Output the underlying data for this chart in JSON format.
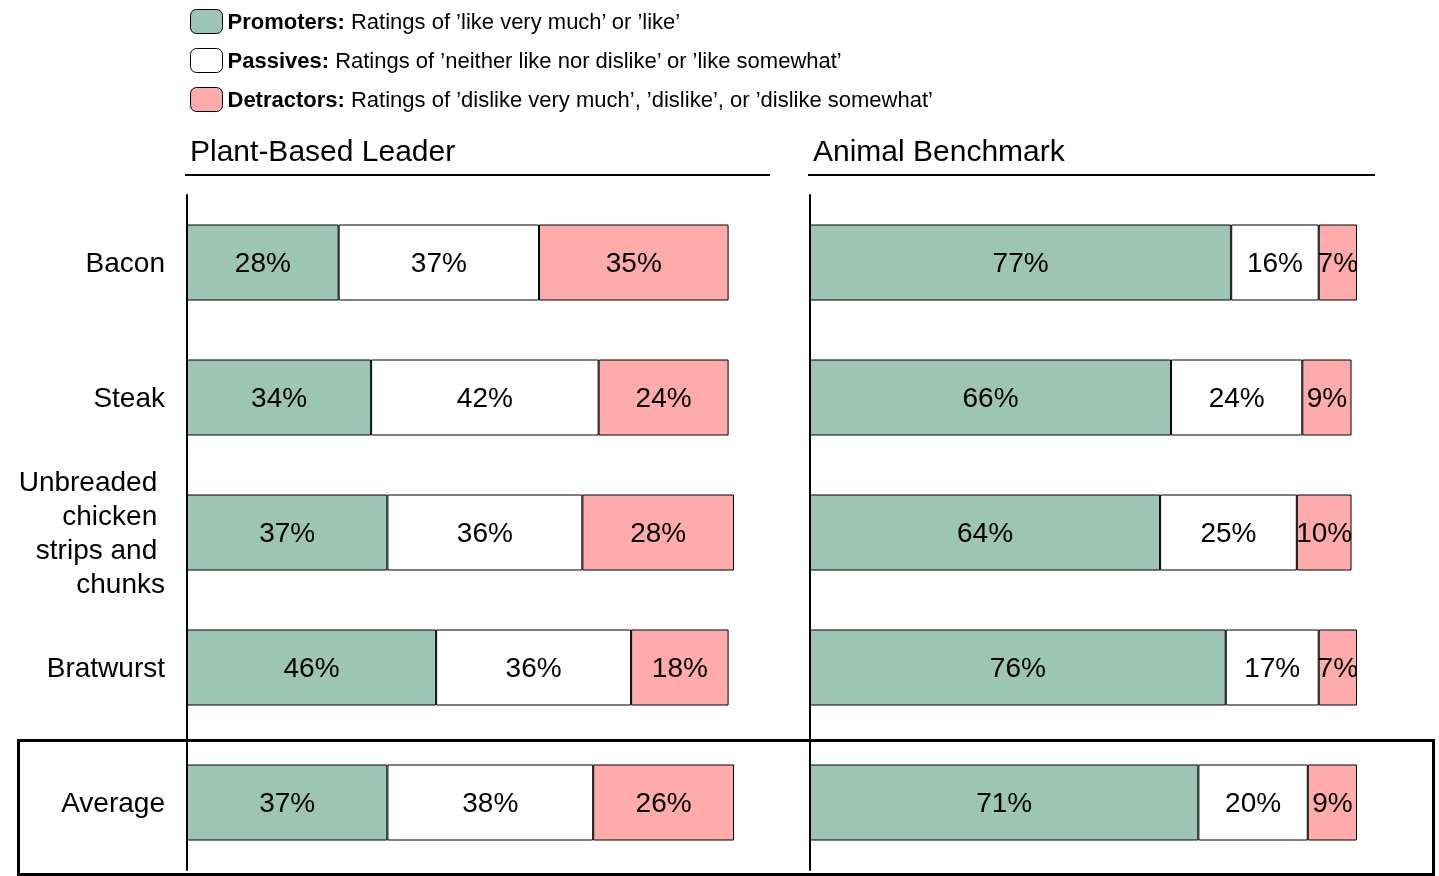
{
  "chart_data": [
    {
      "type": "bar",
      "orientation": "horizontal",
      "stacked": true,
      "title": "Plant-Based Leader",
      "legend": "top",
      "categories": [
        "Bacon",
        "Steak",
        "Unbreaded chicken strips and chunks",
        "Bratwurst",
        "Average"
      ],
      "series": [
        {
          "name": "Promoters: Ratings of ’like very much’ or ’like’",
          "color": "#9dc5b3",
          "values": [
            28,
            34,
            37,
            46,
            37
          ],
          "value_labels": [
            "28%",
            "34%",
            "37%",
            "46%",
            "37%"
          ]
        },
        {
          "name": "Passives: Ratings of ’neither like nor dislike’ or ’like somewhat’",
          "color": "#ffffff",
          "values": [
            37,
            42,
            36,
            36,
            38
          ],
          "value_labels": [
            "37%",
            "42%",
            "36%",
            "36%",
            "38%"
          ]
        },
        {
          "name": "Detractors: Ratings of ’dislike very much’, ’dislike’, or ’dislike somewhat’",
          "color": "#ffabab",
          "values": [
            35,
            24,
            28,
            18,
            26
          ],
          "value_labels": [
            "35%",
            "24%",
            "28%",
            "18%",
            "26%"
          ]
        }
      ]
    },
    {
      "type": "bar",
      "orientation": "horizontal",
      "stacked": true,
      "title": "Animal Benchmark",
      "tick_labels": false,
      "categories": [
        "Bacon",
        "Steak",
        "Unbreaded chicken strips and chunks",
        "Bratwurst",
        "Average"
      ],
      "series": [
        {
          "color": "#9dc5b3",
          "values": [
            77,
            66,
            64,
            76,
            71
          ],
          "value_labels": [
            "77%",
            "66%",
            "64%",
            "76%",
            "71%"
          ]
        },
        {
          "color": "#ffffff",
          "values": [
            16,
            24,
            25,
            17,
            20
          ],
          "value_labels": [
            "16%",
            "24%",
            "25%",
            "17%",
            "20%"
          ]
        },
        {
          "color": "#ffabab",
          "values": [
            7,
            9,
            10,
            7,
            9
          ],
          "value_labels": [
            "7%",
            "9%",
            "10%",
            "7%",
            "9%"
          ]
        }
      ]
    }
  ]
}
